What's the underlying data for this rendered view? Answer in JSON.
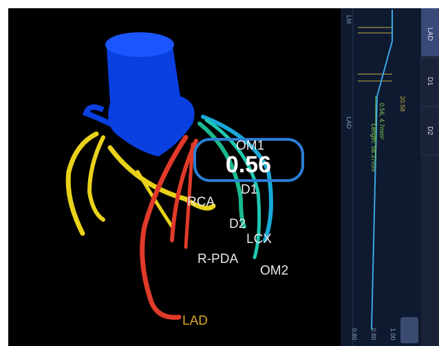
{
  "viewer": {
    "labels": {
      "om1": "OM1",
      "value": "0.56",
      "d1": "D1",
      "rca": "RCA",
      "d2": "D2",
      "lcx": "LCX",
      "rpda": "R-PDA",
      "om2": "OM2",
      "lad": "LAD"
    }
  },
  "panel": {
    "tabs": [
      "LAD",
      "D1",
      "D2"
    ],
    "start": "LM",
    "marker": "LAD",
    "measure": "0.56, 4.7mm²",
    "length": "Length: 58.37mm",
    "distance": "20.58",
    "scale": [
      "0.80",
      "0.80",
      "1.00"
    ]
  }
}
